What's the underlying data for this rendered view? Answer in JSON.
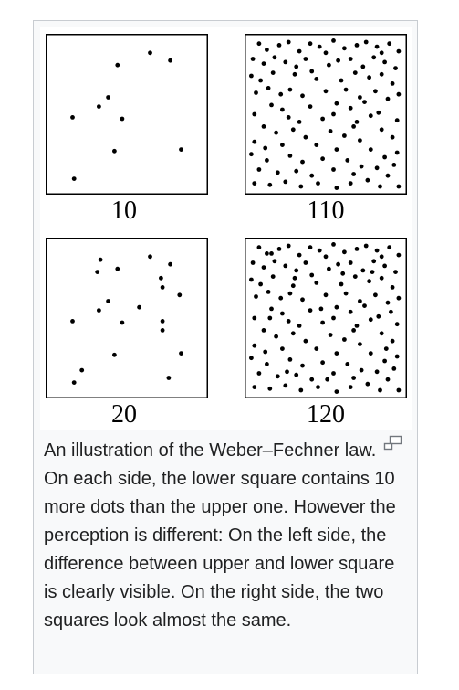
{
  "figure": {
    "panels": [
      {
        "label": "10",
        "dots": [
          [
            0.44,
            0.18
          ],
          [
            0.65,
            0.1
          ],
          [
            0.78,
            0.15
          ],
          [
            0.38,
            0.39
          ],
          [
            0.32,
            0.45
          ],
          [
            0.15,
            0.52
          ],
          [
            0.47,
            0.53
          ],
          [
            0.42,
            0.74
          ],
          [
            0.85,
            0.73
          ],
          [
            0.16,
            0.92
          ]
        ]
      },
      {
        "label": "110",
        "dots": [
          [
            0.07,
            0.04
          ],
          [
            0.12,
            0.08
          ],
          [
            0.2,
            0.05
          ],
          [
            0.26,
            0.03
          ],
          [
            0.33,
            0.09
          ],
          [
            0.4,
            0.04
          ],
          [
            0.46,
            0.06
          ],
          [
            0.55,
            0.02
          ],
          [
            0.62,
            0.07
          ],
          [
            0.7,
            0.05
          ],
          [
            0.76,
            0.03
          ],
          [
            0.83,
            0.06
          ],
          [
            0.91,
            0.04
          ],
          [
            0.97,
            0.09
          ],
          [
            0.03,
            0.14
          ],
          [
            0.1,
            0.17
          ],
          [
            0.17,
            0.13
          ],
          [
            0.24,
            0.16
          ],
          [
            0.31,
            0.19
          ],
          [
            0.37,
            0.14
          ],
          [
            0.52,
            0.18
          ],
          [
            0.58,
            0.15
          ],
          [
            0.66,
            0.14
          ],
          [
            0.74,
            0.19
          ],
          [
            0.81,
            0.13
          ],
          [
            0.88,
            0.16
          ],
          [
            0.95,
            0.2
          ],
          [
            0.02,
            0.25
          ],
          [
            0.08,
            0.28
          ],
          [
            0.3,
            0.24
          ],
          [
            0.44,
            0.27
          ],
          [
            0.6,
            0.28
          ],
          [
            0.69,
            0.23
          ],
          [
            0.78,
            0.26
          ],
          [
            0.86,
            0.24
          ],
          [
            0.93,
            0.3
          ],
          [
            0.05,
            0.36
          ],
          [
            0.13,
            0.33
          ],
          [
            0.21,
            0.37
          ],
          [
            0.27,
            0.34
          ],
          [
            0.35,
            0.38
          ],
          [
            0.5,
            0.35
          ],
          [
            0.63,
            0.34
          ],
          [
            0.72,
            0.39
          ],
          [
            0.82,
            0.35
          ],
          [
            0.9,
            0.4
          ],
          [
            0.97,
            0.37
          ],
          [
            0.15,
            0.44
          ],
          [
            0.22,
            0.47
          ],
          [
            0.4,
            0.45
          ],
          [
            0.57,
            0.43
          ],
          [
            0.66,
            0.46
          ],
          [
            0.75,
            0.42
          ],
          [
            0.84,
            0.49
          ],
          [
            0.04,
            0.5
          ],
          [
            0.26,
            0.52
          ],
          [
            0.33,
            0.55
          ],
          [
            0.48,
            0.53
          ],
          [
            0.7,
            0.55
          ],
          [
            0.79,
            0.51
          ],
          [
            0.96,
            0.54
          ],
          [
            0.1,
            0.58
          ],
          [
            0.18,
            0.62
          ],
          [
            0.29,
            0.6
          ],
          [
            0.37,
            0.65
          ],
          [
            0.53,
            0.61
          ],
          [
            0.62,
            0.64
          ],
          [
            0.72,
            0.67
          ],
          [
            0.86,
            0.6
          ],
          [
            0.93,
            0.65
          ],
          [
            0.04,
            0.68
          ],
          [
            0.22,
            0.7
          ],
          [
            0.44,
            0.7
          ],
          [
            0.57,
            0.73
          ],
          [
            0.79,
            0.73
          ],
          [
            0.88,
            0.78
          ],
          [
            0.96,
            0.75
          ],
          [
            0.02,
            0.76
          ],
          [
            0.12,
            0.8
          ],
          [
            0.27,
            0.77
          ],
          [
            0.35,
            0.81
          ],
          [
            0.48,
            0.79
          ],
          [
            0.64,
            0.8
          ],
          [
            0.73,
            0.84
          ],
          [
            0.83,
            0.85
          ],
          [
            0.94,
            0.83
          ],
          [
            0.07,
            0.86
          ],
          [
            0.19,
            0.88
          ],
          [
            0.31,
            0.87
          ],
          [
            0.41,
            0.9
          ],
          [
            0.55,
            0.86
          ],
          [
            0.68,
            0.89
          ],
          [
            0.77,
            0.93
          ],
          [
            0.9,
            0.9
          ],
          [
            0.04,
            0.95
          ],
          [
            0.14,
            0.96
          ],
          [
            0.24,
            0.94
          ],
          [
            0.34,
            0.97
          ],
          [
            0.45,
            0.95
          ],
          [
            0.57,
            0.98
          ],
          [
            0.66,
            0.95
          ],
          [
            0.85,
            0.97
          ],
          [
            0.97,
            0.97
          ],
          [
            0.5,
            0.1
          ],
          [
            0.86,
            0.1
          ],
          [
            0.41,
            0.22
          ],
          [
            0.16,
            0.23
          ],
          [
            0.55,
            0.5
          ],
          [
            0.11,
            0.72
          ],
          [
            0.68,
            0.58
          ]
        ]
      },
      {
        "label": "20",
        "dots": [
          [
            0.44,
            0.18
          ],
          [
            0.65,
            0.1
          ],
          [
            0.78,
            0.15
          ],
          [
            0.38,
            0.39
          ],
          [
            0.32,
            0.45
          ],
          [
            0.15,
            0.52
          ],
          [
            0.47,
            0.53
          ],
          [
            0.42,
            0.74
          ],
          [
            0.85,
            0.73
          ],
          [
            0.16,
            0.92
          ],
          [
            0.33,
            0.12
          ],
          [
            0.31,
            0.2
          ],
          [
            0.72,
            0.24
          ],
          [
            0.73,
            0.3
          ],
          [
            0.84,
            0.35
          ],
          [
            0.58,
            0.43
          ],
          [
            0.73,
            0.52
          ],
          [
            0.73,
            0.58
          ],
          [
            0.21,
            0.84
          ],
          [
            0.77,
            0.89
          ]
        ]
      },
      {
        "label": "120",
        "dots": [
          [
            0.07,
            0.04
          ],
          [
            0.12,
            0.08
          ],
          [
            0.2,
            0.05
          ],
          [
            0.26,
            0.03
          ],
          [
            0.33,
            0.09
          ],
          [
            0.4,
            0.04
          ],
          [
            0.46,
            0.06
          ],
          [
            0.55,
            0.02
          ],
          [
            0.62,
            0.07
          ],
          [
            0.7,
            0.05
          ],
          [
            0.76,
            0.03
          ],
          [
            0.83,
            0.06
          ],
          [
            0.91,
            0.04
          ],
          [
            0.97,
            0.09
          ],
          [
            0.03,
            0.14
          ],
          [
            0.1,
            0.17
          ],
          [
            0.17,
            0.13
          ],
          [
            0.24,
            0.16
          ],
          [
            0.31,
            0.19
          ],
          [
            0.37,
            0.14
          ],
          [
            0.52,
            0.18
          ],
          [
            0.58,
            0.15
          ],
          [
            0.66,
            0.14
          ],
          [
            0.74,
            0.19
          ],
          [
            0.81,
            0.13
          ],
          [
            0.88,
            0.16
          ],
          [
            0.95,
            0.2
          ],
          [
            0.02,
            0.25
          ],
          [
            0.08,
            0.28
          ],
          [
            0.3,
            0.24
          ],
          [
            0.44,
            0.27
          ],
          [
            0.6,
            0.28
          ],
          [
            0.69,
            0.23
          ],
          [
            0.78,
            0.26
          ],
          [
            0.86,
            0.24
          ],
          [
            0.93,
            0.3
          ],
          [
            0.05,
            0.36
          ],
          [
            0.13,
            0.33
          ],
          [
            0.21,
            0.37
          ],
          [
            0.27,
            0.34
          ],
          [
            0.35,
            0.38
          ],
          [
            0.5,
            0.35
          ],
          [
            0.63,
            0.34
          ],
          [
            0.72,
            0.39
          ],
          [
            0.82,
            0.35
          ],
          [
            0.9,
            0.4
          ],
          [
            0.97,
            0.37
          ],
          [
            0.15,
            0.44
          ],
          [
            0.22,
            0.47
          ],
          [
            0.4,
            0.45
          ],
          [
            0.57,
            0.43
          ],
          [
            0.66,
            0.46
          ],
          [
            0.75,
            0.42
          ],
          [
            0.84,
            0.49
          ],
          [
            0.04,
            0.5
          ],
          [
            0.26,
            0.52
          ],
          [
            0.33,
            0.55
          ],
          [
            0.48,
            0.53
          ],
          [
            0.7,
            0.55
          ],
          [
            0.79,
            0.51
          ],
          [
            0.96,
            0.54
          ],
          [
            0.1,
            0.58
          ],
          [
            0.18,
            0.62
          ],
          [
            0.29,
            0.6
          ],
          [
            0.37,
            0.65
          ],
          [
            0.53,
            0.61
          ],
          [
            0.62,
            0.64
          ],
          [
            0.72,
            0.67
          ],
          [
            0.86,
            0.6
          ],
          [
            0.93,
            0.65
          ],
          [
            0.04,
            0.68
          ],
          [
            0.22,
            0.7
          ],
          [
            0.44,
            0.7
          ],
          [
            0.57,
            0.73
          ],
          [
            0.79,
            0.73
          ],
          [
            0.88,
            0.78
          ],
          [
            0.96,
            0.75
          ],
          [
            0.02,
            0.76
          ],
          [
            0.12,
            0.8
          ],
          [
            0.27,
            0.77
          ],
          [
            0.35,
            0.81
          ],
          [
            0.48,
            0.79
          ],
          [
            0.64,
            0.8
          ],
          [
            0.73,
            0.84
          ],
          [
            0.83,
            0.85
          ],
          [
            0.94,
            0.83
          ],
          [
            0.07,
            0.86
          ],
          [
            0.19,
            0.88
          ],
          [
            0.31,
            0.87
          ],
          [
            0.41,
            0.9
          ],
          [
            0.55,
            0.86
          ],
          [
            0.68,
            0.89
          ],
          [
            0.77,
            0.93
          ],
          [
            0.9,
            0.9
          ],
          [
            0.04,
            0.95
          ],
          [
            0.14,
            0.96
          ],
          [
            0.24,
            0.94
          ],
          [
            0.34,
            0.97
          ],
          [
            0.45,
            0.95
          ],
          [
            0.57,
            0.98
          ],
          [
            0.66,
            0.95
          ],
          [
            0.85,
            0.97
          ],
          [
            0.97,
            0.97
          ],
          [
            0.5,
            0.1
          ],
          [
            0.86,
            0.1
          ],
          [
            0.41,
            0.22
          ],
          [
            0.16,
            0.23
          ],
          [
            0.55,
            0.5
          ],
          [
            0.11,
            0.72
          ],
          [
            0.68,
            0.58
          ],
          [
            0.15,
            0.08
          ],
          [
            0.29,
            0.29
          ],
          [
            0.47,
            0.44
          ],
          [
            0.61,
            0.21
          ],
          [
            0.8,
            0.2
          ],
          [
            0.92,
            0.46
          ],
          [
            0.14,
            0.5
          ],
          [
            0.25,
            0.85
          ],
          [
            0.51,
            0.9
          ],
          [
            0.89,
            0.7
          ]
        ]
      }
    ]
  },
  "caption": {
    "text": "An illustration of the Weber–Fechner law. On each side, the lower square contains 10 more dots than the upper one. However the perception is different: On the left side, the difference between upper and lower square is clearly visible. On the right side, the two squares look almost the same."
  },
  "icons": {
    "magnify": "magnify-icon"
  }
}
